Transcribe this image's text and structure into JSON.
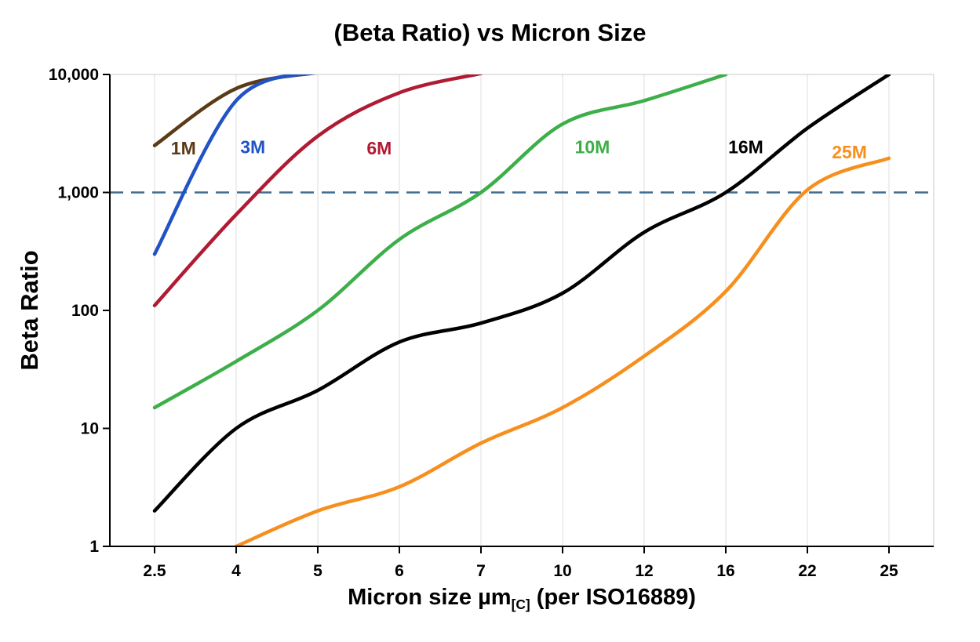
{
  "title": "(Beta Ratio) vs Micron Size",
  "ylabel": "Beta Ratio",
  "xlabel": {
    "pre": "Micron size µm",
    "sub": "[C]",
    "post": " (per ISO16889)"
  },
  "chart_data": {
    "type": "line",
    "x_categories": [
      "2.5",
      "4",
      "5",
      "6",
      "7",
      "10",
      "12",
      "16",
      "22",
      "25"
    ],
    "x_axis_note": "per ISO16889",
    "y_scale": "log",
    "ylim": [
      1,
      10000
    ],
    "grid": "vertical",
    "legend_position": "inline-labels",
    "y_ticks": [
      {
        "value": 1,
        "label": "1"
      },
      {
        "value": 10,
        "label": "10"
      },
      {
        "value": 100,
        "label": "100"
      },
      {
        "value": 1000,
        "label": "1,000"
      },
      {
        "value": 10000,
        "label": "10,000"
      }
    ],
    "reference_line": {
      "value": 1000,
      "style": "dashed",
      "color": "#3e6b8f"
    },
    "series": [
      {
        "name": "1M",
        "color": "#5b3a16",
        "values": [
          2500,
          7600,
          10400,
          null,
          null,
          null,
          null,
          null,
          null,
          null
        ],
        "label_pos": {
          "xi": 0.2,
          "y": 2100
        }
      },
      {
        "name": "3M",
        "color": "#2253c6",
        "values": [
          300,
          6000,
          10500,
          null,
          null,
          null,
          null,
          null,
          null,
          null
        ],
        "label_pos": {
          "xi": 1.05,
          "y": 2150
        }
      },
      {
        "name": "6M",
        "color": "#b01b33",
        "values": [
          110,
          650,
          3000,
          7000,
          10200,
          null,
          null,
          null,
          null,
          null
        ],
        "label_pos": {
          "xi": 2.6,
          "y": 2100
        }
      },
      {
        "name": "10M",
        "color": "#3daf49",
        "values": [
          15,
          37,
          100,
          400,
          1000,
          3800,
          6000,
          10000,
          null,
          null
        ],
        "label_pos": {
          "xi": 5.15,
          "y": 2150
        }
      },
      {
        "name": "16M",
        "color": "#000000",
        "values": [
          2,
          10,
          21,
          54,
          78,
          140,
          460,
          1000,
          3500,
          10000
        ],
        "label_pos": {
          "xi": 7.03,
          "y": 2150
        }
      },
      {
        "name": "25M",
        "color": "#f78f1e",
        "values": [
          null,
          1,
          2,
          3.2,
          7.5,
          15,
          41,
          145,
          1050,
          1950
        ],
        "label_pos": {
          "xi": 8.3,
          "y": 1950
        }
      }
    ]
  }
}
